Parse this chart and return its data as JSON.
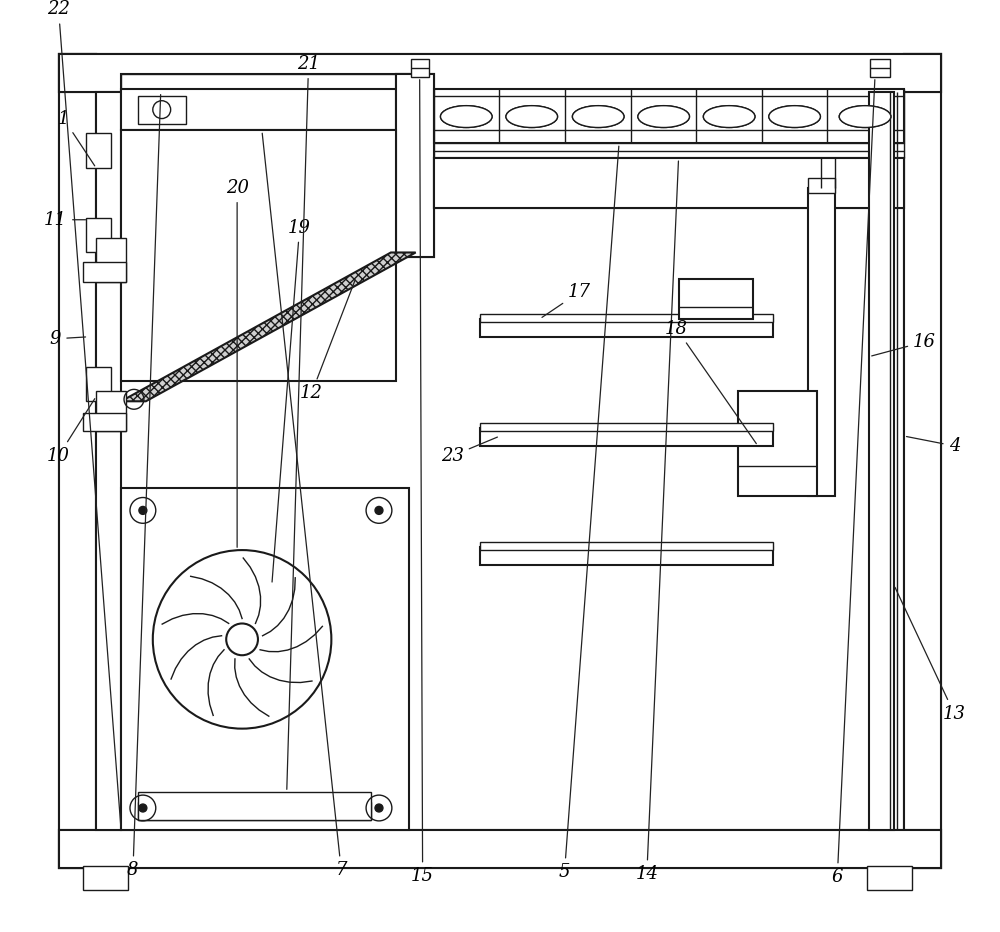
{
  "bg_color": "#ffffff",
  "line_color": "#1a1a1a",
  "label_color": "#000000",
  "wall_thickness": 0.038,
  "figsize": [
    10.0,
    9.32
  ]
}
